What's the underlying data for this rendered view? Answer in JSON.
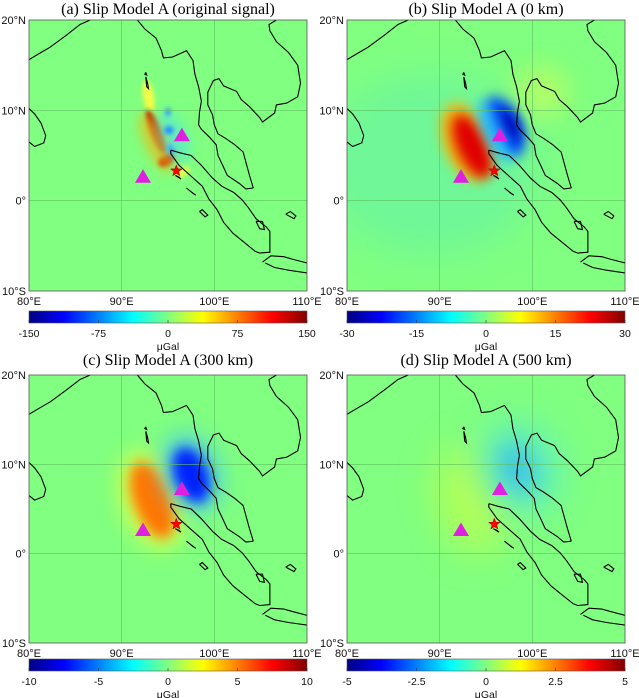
{
  "panels": [
    {
      "title": "(a) Slip Model A  (original signal)",
      "colorbar": {
        "ticks": [
          "-150",
          "-75",
          "0",
          "75",
          "150"
        ],
        "min": -150,
        "max": 150,
        "unit": "μGal"
      }
    },
    {
      "title": "(b) Slip Model A  (0 km)",
      "colorbar": {
        "ticks": [
          "-30",
          "-15",
          "0",
          "15",
          "30"
        ],
        "min": -30,
        "max": 30,
        "unit": "μGal"
      }
    },
    {
      "title": "(c) Slip Model A  (300 km)",
      "colorbar": {
        "ticks": [
          "-10",
          "-5",
          "0",
          "5",
          "10"
        ],
        "min": -10,
        "max": 10,
        "unit": "μGal"
      }
    },
    {
      "title": "(d) Slip Model A  (500 km)",
      "colorbar": {
        "ticks": [
          "-5",
          "-2.5",
          "0",
          "2.5",
          "5"
        ],
        "min": -5,
        "max": 5,
        "unit": "μGal"
      }
    }
  ],
  "axes": {
    "lon_ticks": [
      {
        "value": 80,
        "label": "80°E"
      },
      {
        "value": 90,
        "label": "90°E"
      },
      {
        "value": 100,
        "label": "100°E"
      },
      {
        "value": 110,
        "label": "110°E"
      }
    ],
    "lat_ticks": [
      {
        "value": 20,
        "label": "20°N"
      },
      {
        "value": 10,
        "label": "10°N"
      },
      {
        "value": 0,
        "label": "0°"
      },
      {
        "value": -10,
        "label": "10°S"
      }
    ],
    "lon_range": [
      80,
      110
    ],
    "lat_range": [
      -10,
      20
    ]
  },
  "markers": {
    "stations": [
      {
        "lon": 92.3,
        "lat": 2.6
      },
      {
        "lon": 96.5,
        "lat": 7.2
      }
    ],
    "epicenter": {
      "lon": 95.9,
      "lat": 3.3
    },
    "station_color": "#e020e0",
    "epicenter_color": "#ff0000"
  },
  "colors": {
    "background_zero": "#80ff80"
  }
}
